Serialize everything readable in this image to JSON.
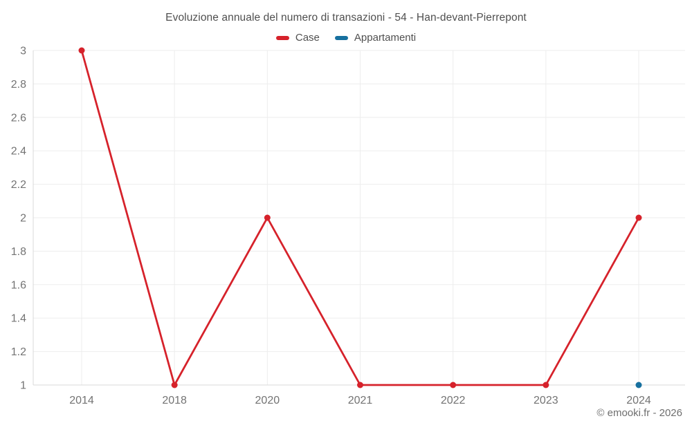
{
  "title": "Evoluzione annuale del numero di transazioni - 54 - Han-devant-Pierrepont",
  "legend": {
    "items": [
      {
        "label": "Case",
        "color": "#d6222b"
      },
      {
        "label": "Appartamenti",
        "color": "#17709f"
      }
    ]
  },
  "footer": {
    "credit": "© emooki.fr - 2026"
  },
  "colors": {
    "grid": "#ededed",
    "axis": "#d8d8d8",
    "title_text": "#4f4f4f",
    "tick_text": "#737373"
  },
  "chart_data": {
    "type": "line",
    "title": "Evoluzione annuale del numero di transazioni - 54 - Han-devant-Pierrepont",
    "categories": [
      "2014",
      "2018",
      "2020",
      "2021",
      "2022",
      "2023",
      "2024"
    ],
    "series": [
      {
        "name": "Case",
        "color": "#d6222b",
        "values": [
          3,
          1,
          2,
          1,
          1,
          1,
          2
        ]
      },
      {
        "name": "Appartamenti",
        "color": "#17709f",
        "values": [
          null,
          null,
          null,
          null,
          null,
          null,
          1
        ]
      }
    ],
    "xlabel": "",
    "ylabel": "",
    "ylim": [
      1,
      3
    ],
    "y_ticks": [
      1,
      1.2,
      1.4,
      1.6,
      1.8,
      2,
      2.2,
      2.4,
      2.6,
      2.8,
      3
    ],
    "y_tick_labels": [
      "1",
      "1.2",
      "1.4",
      "1.6",
      "1.8",
      "2",
      "2.2",
      "2.4",
      "2.6",
      "2.8",
      "3"
    ],
    "grid": true,
    "legend_position": "top"
  }
}
